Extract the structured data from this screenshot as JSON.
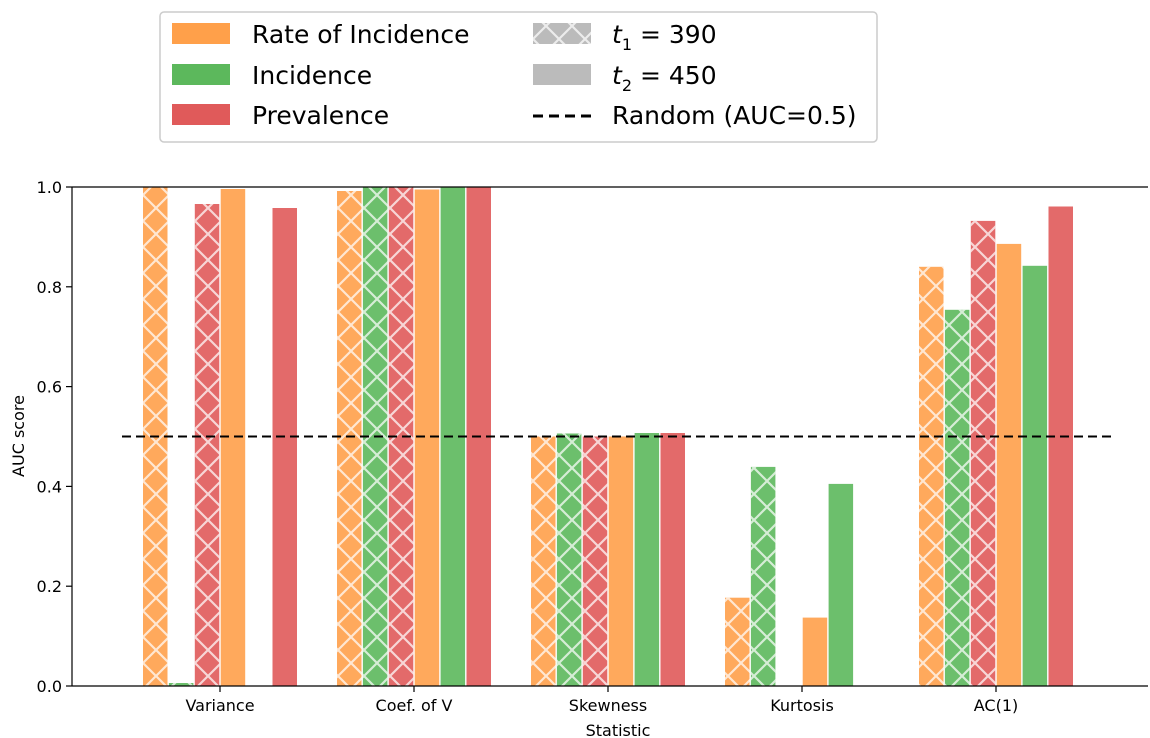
{
  "chart_data": {
    "type": "bar",
    "xlabel": "Statistic",
    "ylabel": "AUC score",
    "ylim": [
      0,
      1.0
    ],
    "yticks": [
      "0.0",
      "0.2",
      "0.4",
      "0.6",
      "0.8",
      "1.0"
    ],
    "categories": [
      "Variance",
      "Coef. of V",
      "Skewness",
      "Kurtosis",
      "AC(1)"
    ],
    "reference_line": {
      "label": "Random (AUC=0.5)",
      "value": 0.5,
      "style": "dashed"
    },
    "colors": {
      "Rate of Incidence": "#FFA04A",
      "Incidence": "#5CB85C",
      "Prevalence": "#E05A5A",
      "reference": "#000000",
      "time_swatch": "#BBBBBB"
    },
    "legend": {
      "placement": "top",
      "variables": [
        "Rate of Incidence",
        "Incidence",
        "Prevalence"
      ],
      "times": [
        {
          "symbol": "t",
          "sub": "1",
          "value": "= 390",
          "hatch": true
        },
        {
          "symbol": "t",
          "sub": "2",
          "value": "= 450",
          "hatch": false
        }
      ]
    },
    "series": [
      {
        "name": "Rate of Incidence",
        "time": "t1 = 390",
        "values": [
          1.0,
          0.992,
          0.5,
          0.177,
          0.84
        ]
      },
      {
        "name": "Incidence",
        "time": "t1 = 390",
        "values": [
          0.006,
          1.0,
          0.506,
          0.439,
          0.754
        ]
      },
      {
        "name": "Prevalence",
        "time": "t1 = 390",
        "values": [
          0.966,
          1.0,
          0.5,
          0.0,
          0.932
        ]
      },
      {
        "name": "Rate of Incidence",
        "time": "t2 = 450",
        "values": [
          0.996,
          0.995,
          0.5,
          0.137,
          0.886
        ]
      },
      {
        "name": "Incidence",
        "time": "t2 = 450",
        "values": [
          0.0,
          1.0,
          0.507,
          0.405,
          0.842
        ]
      },
      {
        "name": "Prevalence",
        "time": "t2 = 450",
        "values": [
          0.958,
          1.0,
          0.507,
          0.0,
          0.961
        ]
      }
    ]
  }
}
